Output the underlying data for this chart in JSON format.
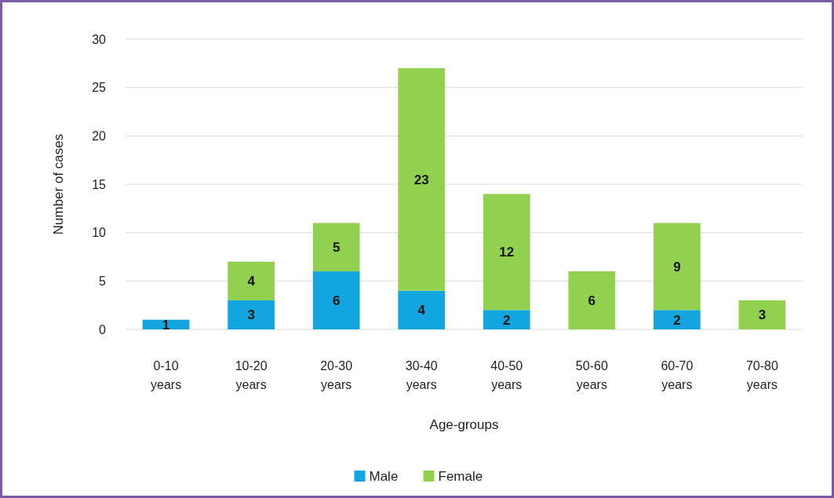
{
  "chart_data": {
    "type": "bar",
    "stacked": true,
    "xlabel": "Age-groups",
    "ylabel": "Number of cases",
    "categories": [
      "0-10 years",
      "10-20 years",
      "20-30 years",
      "30-40 years",
      "40-50 years",
      "50-60 years",
      "60-70 years",
      "70-80 years"
    ],
    "series": [
      {
        "name": "Male",
        "color": "#12a5e0",
        "values": [
          1,
          3,
          6,
          4,
          2,
          0,
          2,
          0
        ],
        "value_labels": [
          "1",
          "3",
          "6",
          "4",
          "2",
          null,
          "2",
          null
        ]
      },
      {
        "name": "Female",
        "color": "#92d050",
        "values": [
          0,
          4,
          5,
          23,
          12,
          6,
          9,
          3
        ],
        "value_labels": [
          null,
          "4",
          "5",
          "23",
          "12",
          "6",
          "9",
          "3"
        ]
      }
    ],
    "ylim": [
      0,
      30
    ],
    "yticks": [
      0,
      5,
      10,
      15,
      20,
      25,
      30
    ],
    "grid": "y",
    "legend": "bottom"
  }
}
